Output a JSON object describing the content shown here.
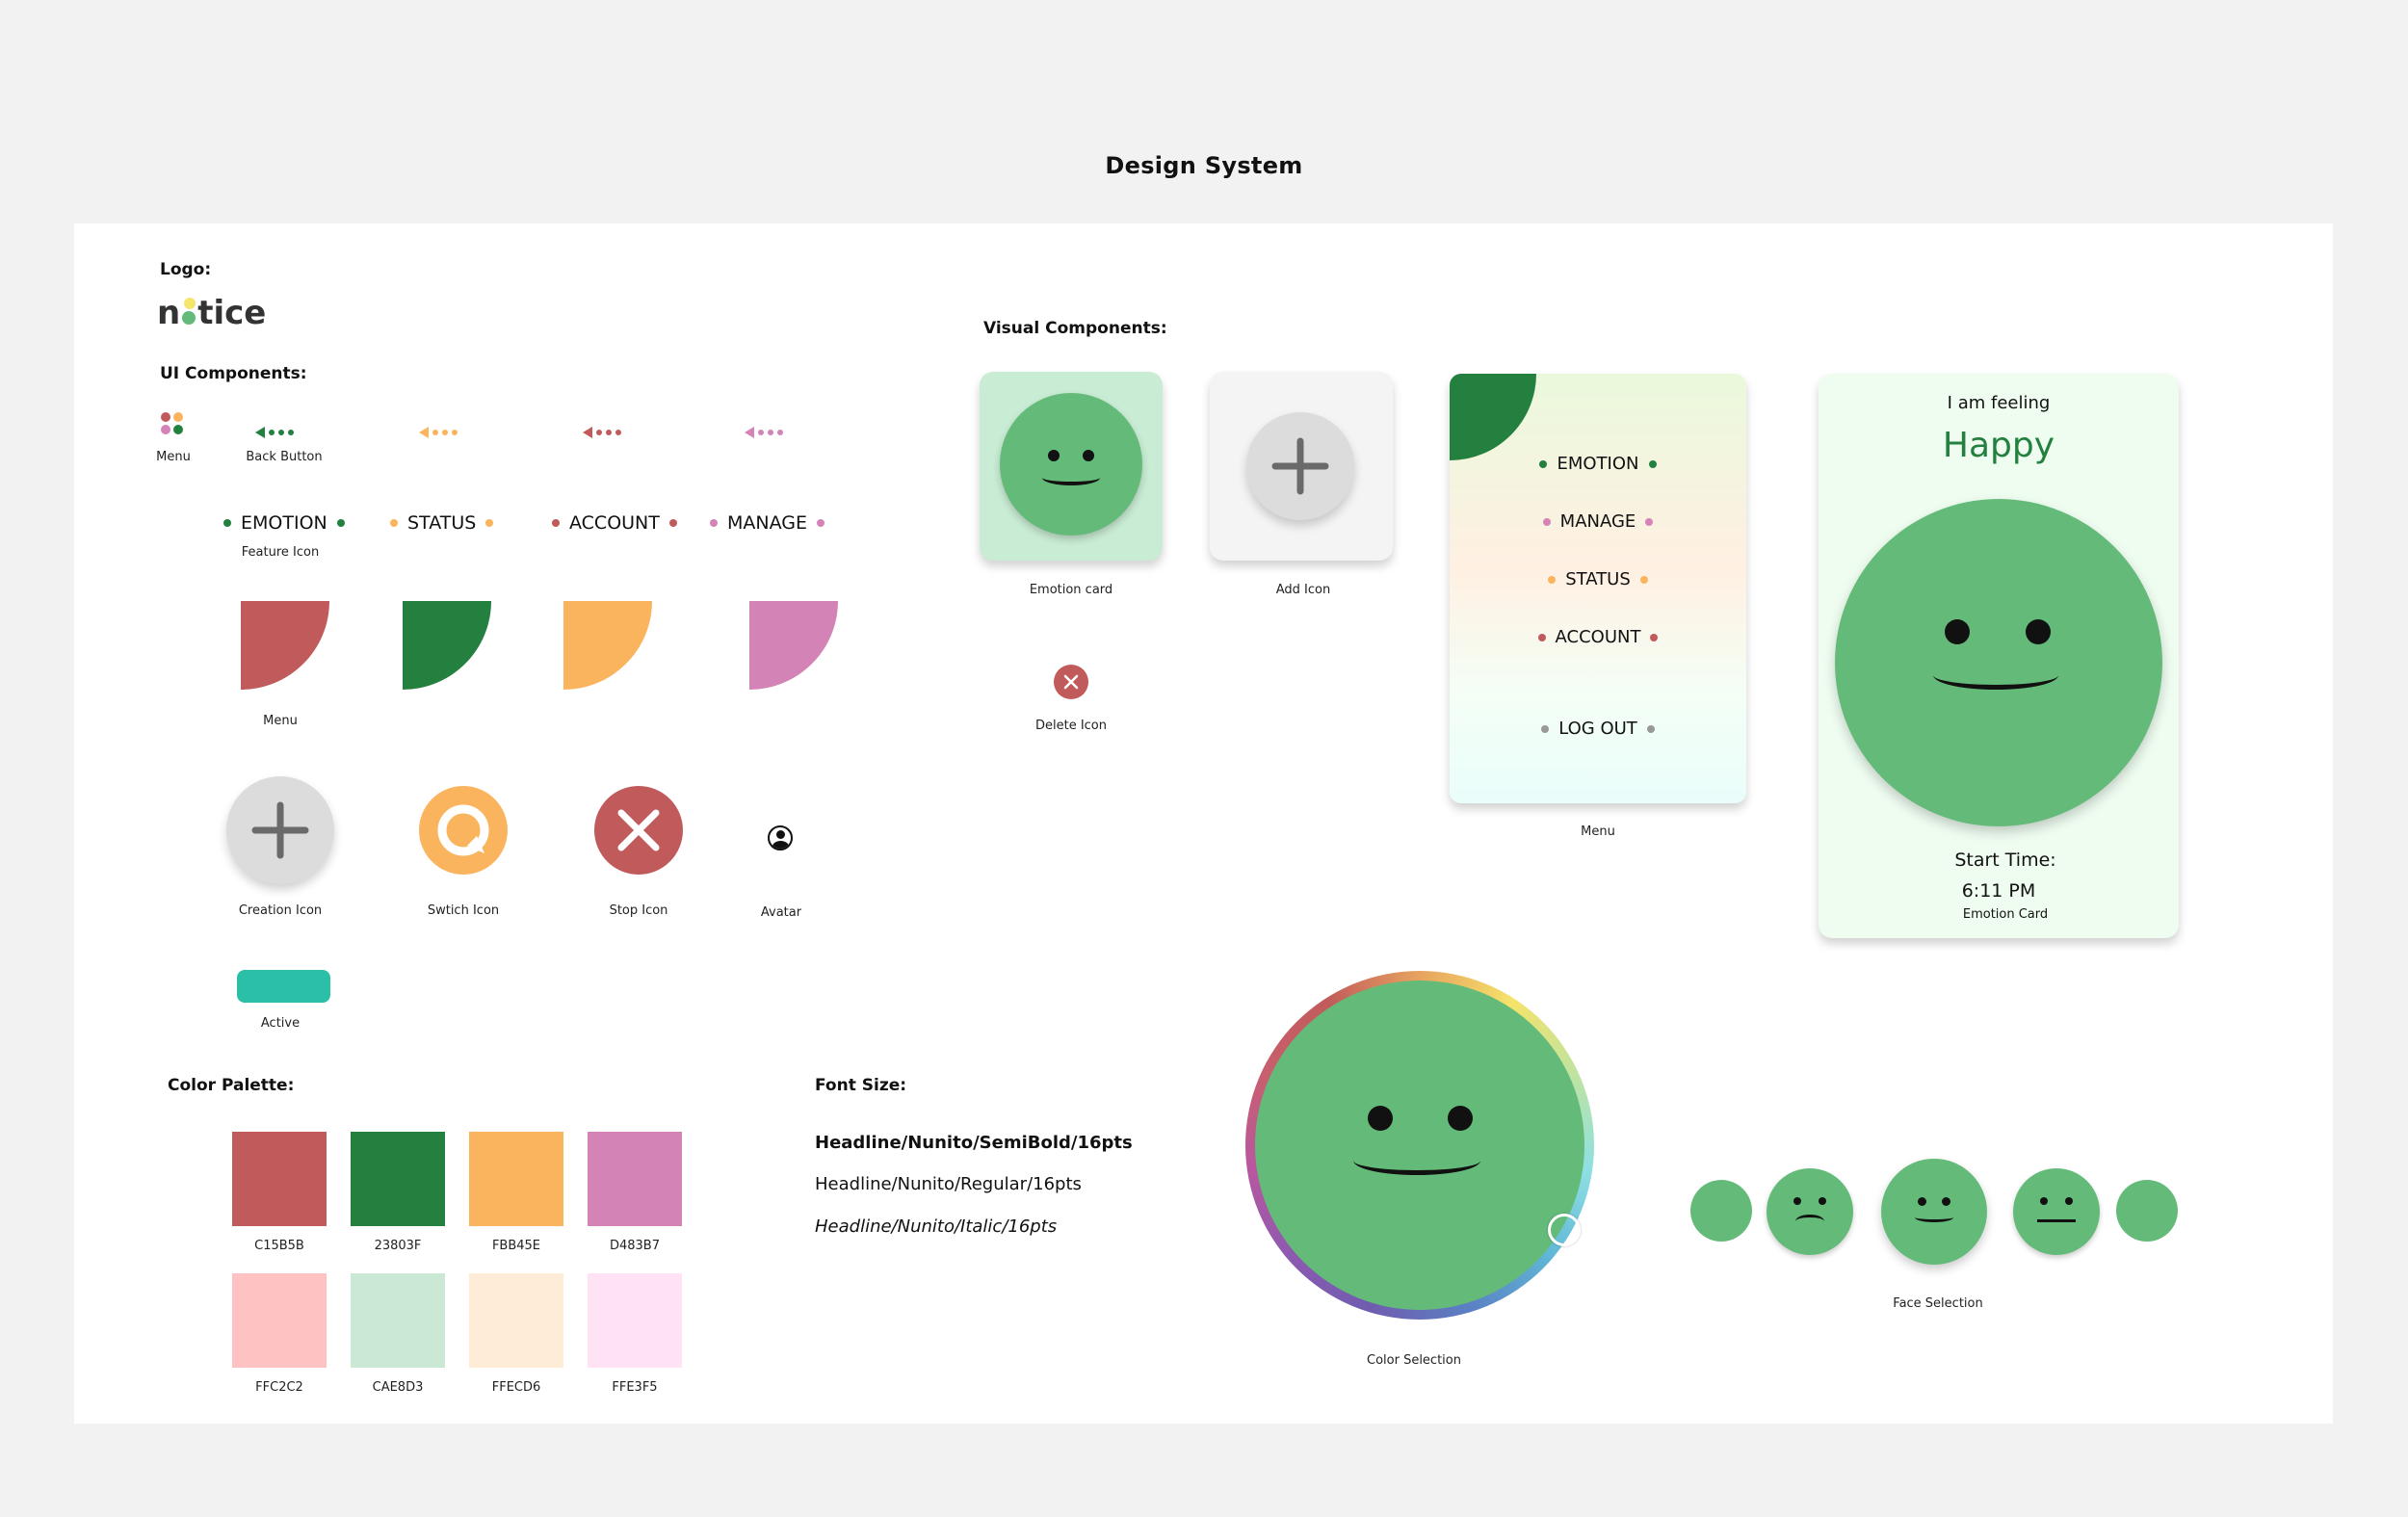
{
  "page_title": "Design System",
  "sections": {
    "logo": "Logo:",
    "ui_components": "UI Components:",
    "visual_components": "Visual Components:",
    "color_palette": "Color Palette:",
    "font_size": "Font Size:"
  },
  "logo": {
    "text_left": "n",
    "text_right": "tice"
  },
  "ui": {
    "menu_label": "Menu",
    "back_button_label": "Back Button",
    "feature_icon_label": "Feature Icon",
    "features": [
      "EMOTION",
      "STATUS",
      "ACCOUNT",
      "MANAGE"
    ],
    "menu_shapes_label": "Menu",
    "creation_icon_label": "Creation Icon",
    "switch_icon_label": "Swtich Icon",
    "stop_icon_label": "Stop Icon",
    "avatar_label": "Avatar",
    "active_label": "Active"
  },
  "colors": {
    "red": "#C15B5B",
    "green": "#23803F",
    "orange": "#FBB45E",
    "pink": "#D483B7",
    "teal": "#2BBFA8",
    "face_green": "#64BB79"
  },
  "palette": [
    {
      "hex": "#C15B5B",
      "label": "C15B5B"
    },
    {
      "hex": "#23803F",
      "label": "23803F"
    },
    {
      "hex": "#FBB45E",
      "label": "FBB45E"
    },
    {
      "hex": "#D483B7",
      "label": "D483B7"
    },
    {
      "hex": "#FFC2C2",
      "label": "FFC2C2"
    },
    {
      "hex": "#CAE8D3",
      "label": "CAE8D3"
    },
    {
      "hex": "#FFECD6",
      "label": "FFECD6"
    },
    {
      "hex": "#FFE3F5",
      "label": "FFE3F5"
    }
  ],
  "fonts": [
    "Headline/Nunito/SemiBold/16pts",
    "Headline/Nunito/Regular/16pts",
    "Headline/Nunito/Italic/16pts"
  ],
  "visual": {
    "emotion_card_label": "Emotion card",
    "add_icon_label": "Add Icon",
    "delete_icon_label": "Delete Icon",
    "menu_label": "Menu",
    "menu_items": [
      "EMOTION",
      "MANAGE",
      "STATUS",
      "ACCOUNT",
      "LOG OUT"
    ],
    "big_card": {
      "feeling": "I am feeling",
      "emotion": "Happy",
      "start_label": "Start Time:",
      "time": "6:11 PM",
      "caption": "Emotion Card"
    },
    "color_selection_label": "Color Selection",
    "face_selection_label": "Face Selection"
  }
}
